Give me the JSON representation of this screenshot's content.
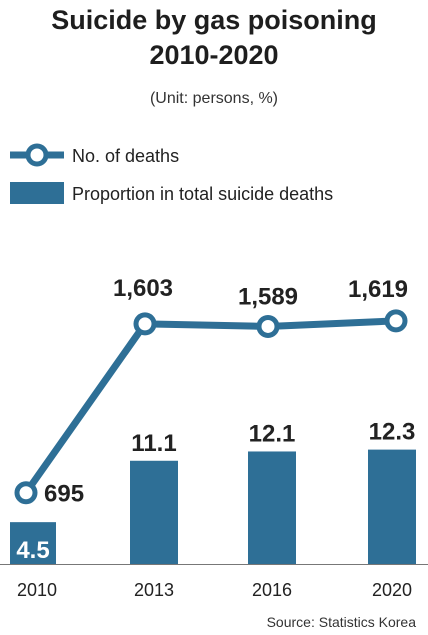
{
  "chart_data": {
    "type": "bar+line",
    "title_lines": [
      "Suicide by gas poisoning",
      "2010-2020"
    ],
    "unit": "(Unit: persons, %)",
    "categories": [
      "2010",
      "2013",
      "2016",
      "2020"
    ],
    "series": [
      {
        "name": "No. of deaths",
        "kind": "line",
        "values": [
          695,
          1603,
          1589,
          1619
        ],
        "labels": [
          "695",
          "1,603",
          "1,589",
          "1,619"
        ]
      },
      {
        "name": "Proportion in total suicide deaths",
        "kind": "bar",
        "values": [
          4.5,
          11.1,
          12.1,
          12.3
        ],
        "labels": [
          "4.5",
          "11.1",
          "12.1",
          "12.3"
        ]
      }
    ],
    "legend_position": "top-left",
    "grid": false,
    "source": "Source: Statistics Korea",
    "colors": {
      "line": "#2e6f96",
      "bar": "#2e6f96"
    }
  }
}
